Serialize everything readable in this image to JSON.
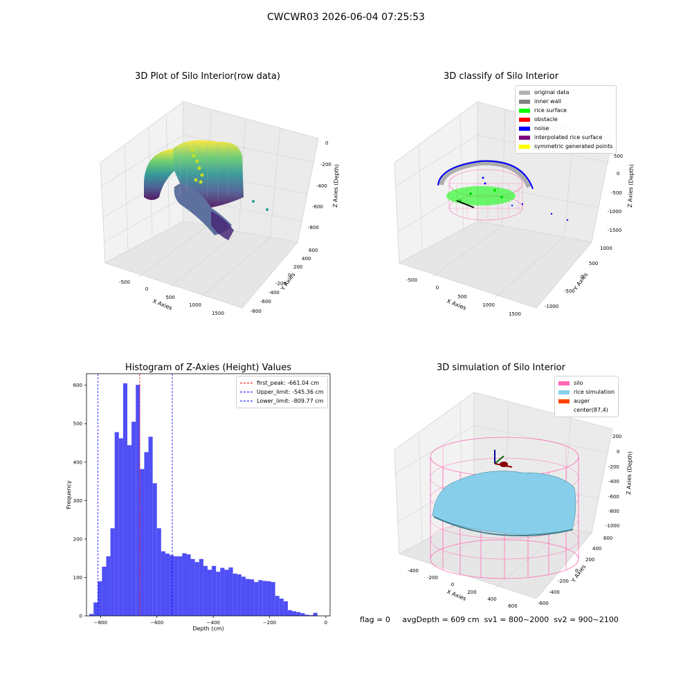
{
  "suptitle": "CWCWR03 2026-06-04 07:25:53",
  "chart_data": [
    {
      "type": "scatter",
      "projection": "3d",
      "title": "3D Plot of Silo Interior(row data)",
      "xlabel": "X Axies",
      "ylabel": "Y Axies",
      "zlabel": "Z Axies (Depth)",
      "x_ticks": [
        "-500",
        "0",
        "500",
        "1000",
        "1500"
      ],
      "y_ticks": [
        "600",
        "400",
        "200",
        "0",
        "-200",
        "-400",
        "-600",
        "-800"
      ],
      "z_ticks": [
        "0",
        "-200",
        "-400",
        "-600",
        "-800"
      ],
      "colormap": "viridis"
    },
    {
      "type": "scatter",
      "projection": "3d",
      "title": "3D classify of Silo Interior",
      "xlabel": "X Axies",
      "ylabel": "Y Axies",
      "zlabel": "Z Axies (Depth)",
      "x_ticks": [
        "-500",
        "0",
        "500",
        "1000",
        "1500"
      ],
      "y_ticks": [
        "1000",
        "500",
        "0",
        "-500",
        "-1000"
      ],
      "z_ticks": [
        "500",
        "0",
        "-500",
        "-1000",
        "-1500"
      ],
      "legend": [
        {
          "label": "original data",
          "color": "#b3b3b3"
        },
        {
          "label": "inner wall",
          "color": "#808080"
        },
        {
          "label": "rice surface",
          "color": "#00ff00"
        },
        {
          "label": "obstacle",
          "color": "#ff0000"
        },
        {
          "label": "noise",
          "color": "#0000ff"
        },
        {
          "label": "interpolated rice surface",
          "color": "#800080"
        },
        {
          "label": "symmetric generated points",
          "color": "#ffff00"
        }
      ]
    },
    {
      "type": "bar",
      "subtype": "histogram",
      "title": "Histogram of Z-Axies (Height) Values",
      "xlabel": "Depth (cm)",
      "ylabel": "Frequency",
      "xlim": [
        -850,
        15
      ],
      "ylim": [
        0,
        630
      ],
      "bar_color": "#4f4ff5",
      "bin_width": 15,
      "x_ticks": [
        "-800",
        "-600",
        "-400",
        "-200",
        "0"
      ],
      "y_ticks": [
        "0",
        "100",
        "200",
        "300",
        "400",
        "500",
        "600"
      ],
      "bins_start": [
        -840,
        -825,
        -810,
        -795,
        -780,
        -765,
        -750,
        -735,
        -720,
        -705,
        -690,
        -675,
        -660,
        -645,
        -630,
        -615,
        -600,
        -585,
        -570,
        -555,
        -540,
        -525,
        -510,
        -495,
        -480,
        -465,
        -450,
        -435,
        -420,
        -405,
        -390,
        -375,
        -360,
        -345,
        -330,
        -315,
        -300,
        -285,
        -270,
        -255,
        -240,
        -225,
        -210,
        -195,
        -180,
        -165,
        -150,
        -135,
        -120,
        -105,
        -90,
        -75,
        -60,
        -45,
        -30,
        -15
      ],
      "values": [
        5,
        35,
        90,
        128,
        155,
        228,
        478,
        462,
        605,
        444,
        505,
        601,
        382,
        426,
        466,
        345,
        228,
        168,
        162,
        158,
        155,
        155,
        163,
        160,
        148,
        140,
        148,
        130,
        120,
        130,
        115,
        125,
        120,
        126,
        110,
        108,
        102,
        96,
        95,
        88,
        93,
        91,
        90,
        88,
        52,
        45,
        38,
        15,
        12,
        10,
        7,
        3,
        2,
        8,
        0,
        0
      ],
      "lines": [
        {
          "label": "first_peak: -661.04 cm",
          "x": -661.04,
          "color": "#ff0000"
        },
        {
          "label": "Upper_limit: -545.36 cm",
          "x": -545.36,
          "color": "#0000ff"
        },
        {
          "label": "Lower_limit: -809.77 cm",
          "x": -809.77,
          "color": "#0000ff"
        }
      ]
    },
    {
      "type": "surface",
      "projection": "3d",
      "title": "3D simulation of Silo Interior",
      "xlabel": "X Axies",
      "ylabel": "Y Axies",
      "zlabel": "Z Axies (Depth)",
      "x_ticks": [
        "-400",
        "-200",
        "0",
        "200",
        "400",
        "600"
      ],
      "y_ticks": [
        "600",
        "400",
        "200",
        "0",
        "-200",
        "-400",
        "-600"
      ],
      "z_ticks": [
        "200",
        "0",
        "-200",
        "-400",
        "-600",
        "-800",
        "-1000"
      ],
      "legend": [
        {
          "label": "silo",
          "color": "#ff69b4"
        },
        {
          "label": "rice simulation",
          "color": "#87ceeb"
        },
        {
          "label": "auger",
          "color": "#ff4500"
        },
        {
          "label": "center(87,4)",
          "color": ""
        }
      ]
    }
  ],
  "footer": {
    "flag": "flag = 0",
    "avg": "avgDepth = 609 cm",
    "sv1": "sv1 = 800~2000",
    "sv2": "sv2 = 900~2100"
  }
}
